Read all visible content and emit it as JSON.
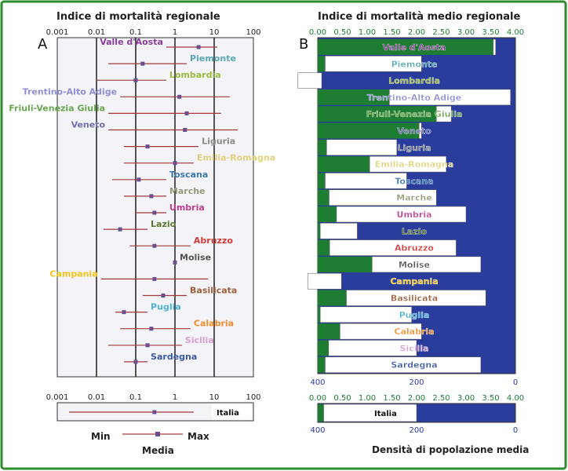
{
  "panel_a": {
    "title": "Indice di mortalità regionale",
    "label": "A",
    "ticks": [
      "0.001",
      "0.01",
      "0.1",
      "1",
      "10",
      "100"
    ],
    "legend_min": "Min",
    "legend_max": "Max",
    "legend_mean": "Media"
  },
  "panel_b": {
    "title": "Indice di mortalità medio regionale",
    "label": "B",
    "top_ticks": [
      "0.00",
      "0.50",
      "1.00",
      "1.50",
      "2.00",
      "2.50",
      "3.00",
      "3.50",
      "4.00"
    ],
    "bottom_ticks": [
      "400",
      "200",
      "0"
    ],
    "bottom_label": "Densità di popolazione media"
  },
  "colors": {
    "border": "#2e8b2e",
    "green": "#1e7d32",
    "blue": "#2a3c9c",
    "whisker": "#a33a3a",
    "marker": "#6b4e8f",
    "plot_bg": "#f3f3f8"
  },
  "chart_data": [
    {
      "type": "scatter",
      "title": "Indice di mortalità regionale",
      "x_scale": "log",
      "xlim": [
        0.001,
        100
      ],
      "categories": [
        "Valle d'Aosta",
        "Piemonte",
        "Lombardia",
        "Trentino-Alto Adige",
        "Friuli-Venezia Giulia",
        "Veneto",
        "Liguria",
        "Emilia-Romagna",
        "Toscana",
        "Marche",
        "Umbria",
        "Lazio",
        "Abruzzo",
        "Molise",
        "Campania",
        "Basilicata",
        "Puglia",
        "Calabria",
        "Sicilia",
        "Sardegna"
      ],
      "label_colors": [
        "#8a3d9c",
        "#5aa8b5",
        "#9bbd3e",
        "#8f8fd6",
        "#6aa84f",
        "#6f6fb0",
        "#8c8c8c",
        "#e0d27a",
        "#3a78b0",
        "#9a9a7a",
        "#c13c8a",
        "#5c7a2e",
        "#d13b3b",
        "#555555",
        "#f0c419",
        "#a0603c",
        "#4fb3d9",
        "#f28c28",
        "#d9a0d0",
        "#3b5aa6"
      ],
      "min": [
        0.6,
        0.02,
        0.01,
        0.04,
        0.02,
        0.02,
        0.05,
        0.05,
        0.025,
        0.05,
        0.1,
        0.015,
        0.07,
        null,
        0.013,
        0.15,
        0.03,
        0.04,
        0.02,
        0.05
      ],
      "mean": [
        4,
        0.15,
        0.1,
        1.3,
        2,
        1.8,
        0.2,
        1,
        0.12,
        0.25,
        0.3,
        0.04,
        0.3,
        1,
        0.3,
        0.5,
        0.05,
        0.25,
        0.2,
        0.1
      ],
      "max": [
        12,
        2,
        0.6,
        25,
        15,
        40,
        4,
        3,
        0.6,
        0.6,
        0.6,
        0.2,
        2.5,
        null,
        7,
        2,
        0.2,
        2.5,
        1.5,
        0.2
      ],
      "italia": {
        "label": "Italia",
        "min": 0.002,
        "mean": 0.3,
        "max": 3
      }
    },
    {
      "type": "bar",
      "title": "Indice di mortalità medio regionale",
      "xlim": [
        0,
        4
      ],
      "categories": [
        "Valle d'Aosta",
        "Piemonte",
        "Lombardia",
        "Trentino-Alto Adige",
        "Friuli-Venezia Giulia",
        "Veneto",
        "Liguria",
        "Emilia-Romagna",
        "Toscana",
        "Marche",
        "Umbria",
        "Lazio",
        "Abruzzo",
        "Molise",
        "Campania",
        "Basilicata",
        "Puglia",
        "Calabria",
        "Sicilia",
        "Sardegna"
      ],
      "mortality_index": [
        3.55,
        0.15,
        0.08,
        1.45,
        2.4,
        2.05,
        0.18,
        1.05,
        0.15,
        0.23,
        0.38,
        0.05,
        0.24,
        1.1,
        0.48,
        0.58,
        0.05,
        0.45,
        0.22,
        0.15
      ],
      "population_density_xlim": [
        400,
        0
      ],
      "population_density": [
        40,
        190,
        440,
        10,
        130,
        190,
        240,
        140,
        220,
        160,
        100,
        320,
        120,
        70,
        420,
        60,
        210,
        190,
        200,
        70
      ],
      "italia": {
        "label": "Italia",
        "mortality_index": 0.12,
        "population_density": 200
      },
      "xlabel_bottom": "Densità di popolazione media"
    }
  ]
}
